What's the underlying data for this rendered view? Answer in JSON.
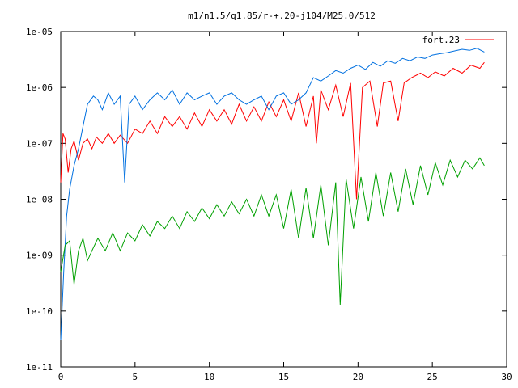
{
  "chart_data": {
    "type": "line",
    "title": "m1/n1.5/q1.85/r-+.20-j104/M25.0/512",
    "xlabel": "",
    "ylabel": "",
    "xlim": [
      0,
      30
    ],
    "ylim": [
      1e-11,
      1e-05
    ],
    "yscale": "log",
    "grid": false,
    "legend_position": "top-right",
    "x_ticks": [
      0,
      5,
      10,
      15,
      20,
      25,
      30
    ],
    "x_tick_labels": [
      "0",
      "5",
      "10",
      "15",
      "20",
      "25",
      "30"
    ],
    "y_ticks": [
      1e-11,
      1e-10,
      1e-09,
      1e-08,
      1e-07,
      1e-06,
      1e-05
    ],
    "y_tick_labels": [
      "1e-11",
      "1e-10",
      "1e-09",
      "1e-08",
      "1e-07",
      "1e-06",
      "1e-05"
    ],
    "series": [
      {
        "name": "fort.23",
        "color": "#ff0000",
        "x": [
          0.0,
          0.15,
          0.3,
          0.5,
          0.7,
          0.9,
          1.2,
          1.5,
          1.8,
          2.1,
          2.4,
          2.8,
          3.2,
          3.6,
          4.0,
          4.5,
          5.0,
          5.5,
          6.0,
          6.5,
          7.0,
          7.5,
          8.0,
          8.5,
          9.0,
          9.5,
          10.0,
          10.5,
          11.0,
          11.5,
          12.0,
          12.5,
          13.0,
          13.5,
          14.0,
          14.5,
          15.0,
          15.5,
          16.0,
          16.5,
          17.0,
          17.2,
          17.5,
          18.0,
          18.5,
          19.0,
          19.5,
          19.9,
          20.3,
          20.8,
          21.3,
          21.7,
          22.2,
          22.7,
          23.1,
          23.6,
          24.2,
          24.7,
          25.2,
          25.8,
          26.4,
          27.0,
          27.6,
          28.2,
          28.5
        ],
        "y": [
          2e-08,
          1.5e-07,
          1.2e-07,
          3e-08,
          8e-08,
          1.1e-07,
          5e-08,
          1e-07,
          1.2e-07,
          8e-08,
          1.3e-07,
          1e-07,
          1.5e-07,
          1e-07,
          1.4e-07,
          1e-07,
          1.8e-07,
          1.5e-07,
          2.5e-07,
          1.5e-07,
          3e-07,
          2e-07,
          3e-07,
          1.8e-07,
          3.5e-07,
          2e-07,
          4e-07,
          2.5e-07,
          4e-07,
          2.2e-07,
          5e-07,
          2.5e-07,
          4.5e-07,
          2.5e-07,
          5.5e-07,
          3e-07,
          6e-07,
          2.5e-07,
          8e-07,
          2e-07,
          7e-07,
          1e-07,
          9e-07,
          4e-07,
          1.1e-06,
          3e-07,
          1.2e-06,
          1e-08,
          1e-06,
          1.3e-06,
          2e-07,
          1.2e-06,
          1.3e-06,
          2.5e-07,
          1.2e-06,
          1.5e-06,
          1.8e-06,
          1.5e-06,
          1.9e-06,
          1.6e-06,
          2.2e-06,
          1.8e-06,
          2.5e-06,
          2.2e-06,
          2.8e-06
        ]
      },
      {
        "color": "#0070e0",
        "x": [
          0.0,
          0.2,
          0.4,
          0.6,
          0.9,
          1.2,
          1.5,
          1.8,
          2.2,
          2.5,
          2.8,
          3.2,
          3.6,
          4.0,
          4.3,
          4.6,
          5.0,
          5.5,
          6.0,
          6.5,
          7.0,
          7.5,
          8.0,
          8.5,
          9.0,
          9.5,
          10.0,
          10.5,
          11.0,
          11.5,
          12.0,
          12.5,
          13.0,
          13.5,
          14.0,
          14.5,
          15.0,
          15.5,
          16.0,
          16.5,
          17.0,
          17.5,
          18.0,
          18.5,
          19.0,
          19.5,
          20.0,
          20.5,
          21.0,
          21.5,
          22.0,
          22.5,
          23.0,
          23.5,
          24.0,
          24.5,
          25.0,
          25.5,
          26.0,
          26.5,
          27.0,
          27.5,
          28.0,
          28.5
        ],
        "y": [
          3e-11,
          5e-10,
          5e-09,
          1.5e-08,
          4e-08,
          8e-08,
          2e-07,
          5e-07,
          7e-07,
          6e-07,
          4e-07,
          8e-07,
          5e-07,
          7e-07,
          2e-08,
          5e-07,
          7e-07,
          4e-07,
          6e-07,
          8e-07,
          6e-07,
          9e-07,
          5e-07,
          8e-07,
          6e-07,
          7e-07,
          8e-07,
          5e-07,
          7e-07,
          8e-07,
          6e-07,
          5e-07,
          6e-07,
          7e-07,
          4e-07,
          7e-07,
          8e-07,
          5e-07,
          6e-07,
          8e-07,
          1.5e-06,
          1.3e-06,
          1.6e-06,
          2e-06,
          1.8e-06,
          2.2e-06,
          2.5e-06,
          2.1e-06,
          2.8e-06,
          2.4e-06,
          3e-06,
          2.7e-06,
          3.3e-06,
          3e-06,
          3.5e-06,
          3.3e-06,
          3.8e-06,
          4e-06,
          4.2e-06,
          4.5e-06,
          4.8e-06,
          4.6e-06,
          5e-06,
          4.3e-06
        ]
      },
      {
        "color": "#00a000",
        "x": [
          0.0,
          0.3,
          0.6,
          0.9,
          1.2,
          1.5,
          1.8,
          2.1,
          2.5,
          3.0,
          3.5,
          4.0,
          4.5,
          5.0,
          5.5,
          6.0,
          6.5,
          7.0,
          7.5,
          8.0,
          8.5,
          9.0,
          9.5,
          10.0,
          10.5,
          11.0,
          11.5,
          12.0,
          12.5,
          13.0,
          13.5,
          14.0,
          14.5,
          15.0,
          15.5,
          16.0,
          16.5,
          17.0,
          17.5,
          18.0,
          18.5,
          18.8,
          19.2,
          19.7,
          20.2,
          20.7,
          21.2,
          21.7,
          22.2,
          22.7,
          23.2,
          23.7,
          24.2,
          24.7,
          25.2,
          25.7,
          26.2,
          26.7,
          27.2,
          27.7,
          28.2,
          28.5
        ],
        "y": [
          5e-10,
          1.5e-09,
          1.8e-09,
          3e-10,
          1.2e-09,
          2e-09,
          8e-10,
          1.2e-09,
          2e-09,
          1.2e-09,
          2.5e-09,
          1.2e-09,
          2.5e-09,
          1.8e-09,
          3.5e-09,
          2.2e-09,
          4e-09,
          3e-09,
          5e-09,
          3e-09,
          6e-09,
          4e-09,
          7e-09,
          4.5e-09,
          8e-09,
          5e-09,
          9e-09,
          5.5e-09,
          1e-08,
          5e-09,
          1.2e-08,
          5e-09,
          1.2e-08,
          3e-09,
          1.5e-08,
          2e-09,
          1.6e-08,
          2e-09,
          1.8e-08,
          1.5e-09,
          2e-08,
          1.3e-10,
          2.3e-08,
          3e-09,
          2.5e-08,
          4e-09,
          3e-08,
          5e-09,
          3e-08,
          6e-09,
          3.5e-08,
          8e-09,
          4e-08,
          1.2e-08,
          4.5e-08,
          1.8e-08,
          5e-08,
          2.5e-08,
          5e-08,
          3.5e-08,
          5.5e-08,
          4e-08
        ]
      }
    ]
  }
}
